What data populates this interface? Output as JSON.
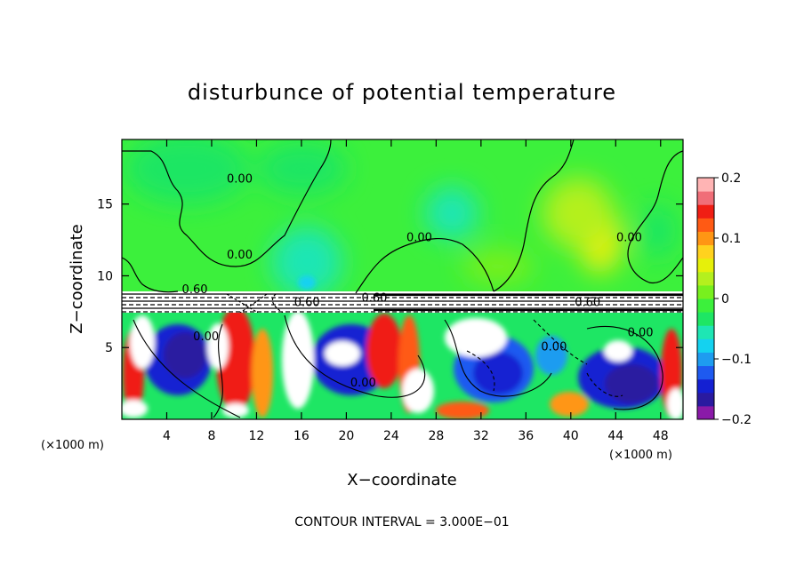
{
  "chart_data": {
    "type": "heatmap",
    "title": "disturbunce of potential temperature",
    "xlabel": "X−coordinate",
    "ylabel": "Z−coordinate",
    "x_unit_label": "(×1000 m)",
    "x_unit_label_right": "(×1000 m)",
    "footer": "CONTOUR INTERVAL = 3.000E−01",
    "xlim": [
      0,
      50
    ],
    "ylim": [
      0,
      19.5
    ],
    "x_ticks": [
      4,
      8,
      12,
      16,
      20,
      24,
      28,
      32,
      36,
      40,
      44,
      48
    ],
    "y_ticks": [
      5,
      10,
      15
    ],
    "colorbar": {
      "range": [
        -0.2,
        0.2
      ],
      "tick_labels": [
        "0.2",
        "0.1",
        "0",
        "−0.1",
        "−0.2"
      ],
      "tick_values": [
        0.2,
        0.1,
        0,
        -0.1,
        -0.2
      ],
      "colors": [
        "#8a1aa8",
        "#2a1aa0",
        "#1420d2",
        "#1e5af0",
        "#1e9cf0",
        "#14d2f0",
        "#1ee6b4",
        "#1ee664",
        "#3cf03c",
        "#78f01e",
        "#b4f01e",
        "#e6f00a",
        "#ffd21e",
        "#ff9614",
        "#ff5a14",
        "#f01e14",
        "#f06e78",
        "#ffb4b4"
      ]
    },
    "contour_labels": [
      {
        "text": "0.00",
        "x": 10.5,
        "y": 16.5
      },
      {
        "text": "0.00",
        "x": 10.5,
        "y": 11.2
      },
      {
        "text": "0.00",
        "x": 26.5,
        "y": 12.4
      },
      {
        "text": "0.00",
        "x": 45.2,
        "y": 12.4
      },
      {
        "text": "0.60",
        "x": 6.5,
        "y": 8.8
      },
      {
        "text": "0.60",
        "x": 16.5,
        "y": 7.9
      },
      {
        "text": "0.60",
        "x": 22.5,
        "y": 8.2
      },
      {
        "text": "0.60",
        "x": 41.5,
        "y": 7.9
      },
      {
        "text": "0.00",
        "x": 7.5,
        "y": 5.5
      },
      {
        "text": "0.00",
        "x": 21.5,
        "y": 2.3
      },
      {
        "text": "0.00",
        "x": 38.5,
        "y": 4.8
      },
      {
        "text": "0.00",
        "x": 46.2,
        "y": 5.8
      }
    ]
  }
}
